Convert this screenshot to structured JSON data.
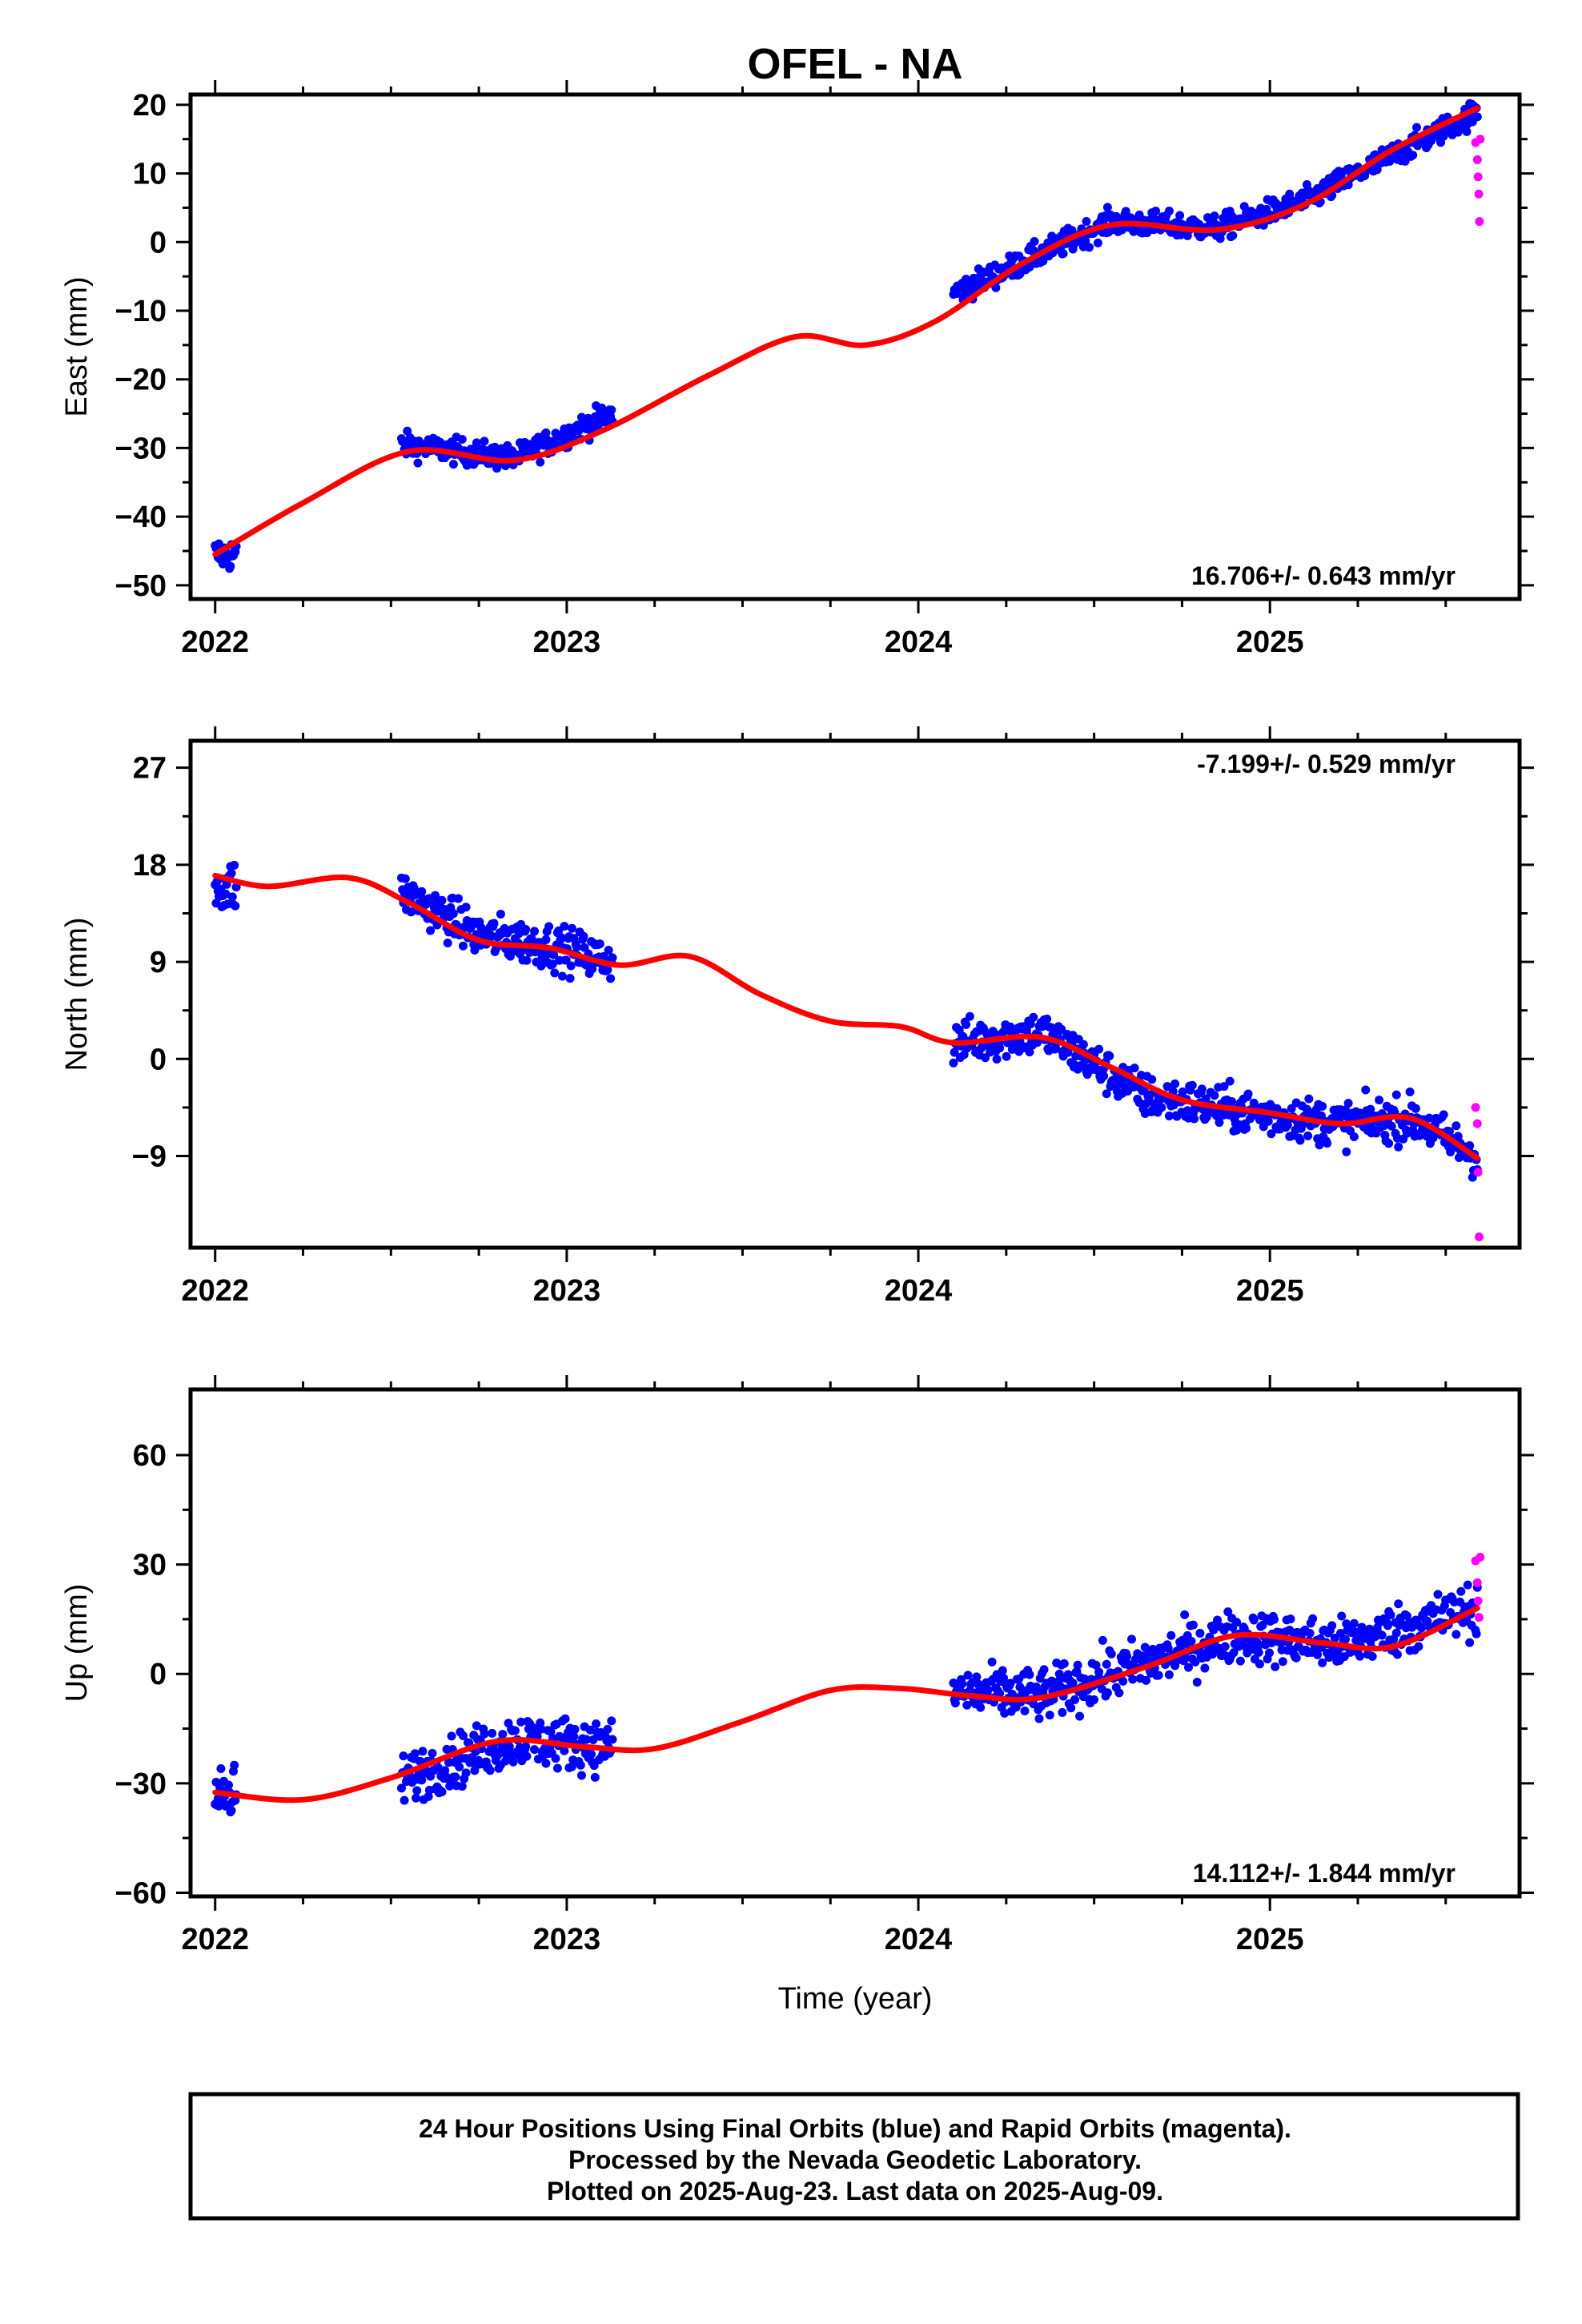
{
  "title": "OFEL - NA",
  "footer": {
    "lines": [
      "24 Hour Positions Using Final Orbits (blue) and Rapid Orbits (magenta).",
      "Processed by the Nevada Geodetic Laboratory.",
      "Plotted on 2025-Aug-23. Last data on 2025-Aug-09."
    ]
  },
  "colors": {
    "final": "#0000ff",
    "rapid": "#ff00ff",
    "model": "#ff0000"
  },
  "chart_data": [
    {
      "type": "scatter",
      "ylabel": "East (mm)",
      "xlabel": "",
      "xlim": [
        2021.93,
        2025.71
      ],
      "ylim": [
        -52,
        21.5
      ],
      "xticks": [
        "2022",
        "2023",
        "2024",
        "2025"
      ],
      "yticks": [
        -50,
        -40,
        -30,
        -20,
        -10,
        0,
        10,
        20
      ],
      "rate": "16.706+/- 0.643 mm/yr",
      "rate_position": "bottom-right",
      "series": [
        {
          "kind": "final",
          "clusters": [
            {
              "x": [
                2022.0,
                2022.06
              ],
              "center": [
                2022.0,
                -45.5
              ],
              "spread": 2.5
            },
            {
              "x": [
                2022.53,
                2023.13
              ],
              "trend": [
                [
                  2022.53,
                  -29.5
                ],
                [
                  2022.85,
                  -31.5
                ],
                [
                  2023.13,
                  -25.0
                ]
              ],
              "spread": 1.8
            },
            {
              "x": [
                2024.1,
                2025.59
              ],
              "trend": [
                [
                  2024.1,
                  -7.5
                ],
                [
                  2024.55,
                  3.0
                ],
                [
                  2024.85,
                  2.0
                ],
                [
                  2025.1,
                  6.0
                ],
                [
                  2025.59,
                  19.0
                ]
              ],
              "spread": 1.8
            }
          ]
        },
        {
          "kind": "rapid",
          "points": [
            [
              2025.585,
              14.5
            ],
            [
              2025.59,
              12.0
            ],
            [
              2025.592,
              9.5
            ],
            [
              2025.594,
              7.0
            ],
            [
              2025.596,
              3.0
            ],
            [
              2025.598,
              15.0
            ]
          ]
        },
        {
          "kind": "model",
          "points": [
            [
              2022.0,
              -45.5
            ],
            [
              2022.25,
              -38
            ],
            [
              2022.55,
              -30.5
            ],
            [
              2022.85,
              -31.8
            ],
            [
              2023.1,
              -27.5
            ],
            [
              2023.4,
              -19.5
            ],
            [
              2023.65,
              -13.8
            ],
            [
              2023.85,
              -15.0
            ],
            [
              2024.05,
              -11.5
            ],
            [
              2024.3,
              -3.0
            ],
            [
              2024.55,
              2.5
            ],
            [
              2024.85,
              1.8
            ],
            [
              2025.1,
              5.5
            ],
            [
              2025.35,
              13.5
            ],
            [
              2025.59,
              19.5
            ]
          ]
        }
      ]
    },
    {
      "type": "scatter",
      "ylabel": "North (mm)",
      "xlabel": "",
      "xlim": [
        2021.93,
        2025.71
      ],
      "ylim": [
        -17.5,
        29.5
      ],
      "xticks": [
        "2022",
        "2023",
        "2024",
        "2025"
      ],
      "yticks": [
        -9,
        0,
        9,
        18,
        27
      ],
      "rate": "-7.199+/- 0.529 mm/yr",
      "rate_position": "top-right",
      "series": [
        {
          "kind": "final",
          "clusters": [
            {
              "x": [
                2022.0,
                2022.06
              ],
              "center": [
                2022.0,
                16.0
              ],
              "spread": 2.5
            },
            {
              "x": [
                2022.53,
                2023.13
              ],
              "trend": [
                [
                  2022.53,
                  15.5
                ],
                [
                  2022.75,
                  11.5
                ],
                [
                  2022.95,
                  10.5
                ],
                [
                  2023.13,
                  9.0
                ]
              ],
              "spread": 2.0
            },
            {
              "x": [
                2024.1,
                2025.59
              ],
              "trend": [
                [
                  2024.1,
                  1.5
                ],
                [
                  2024.35,
                  2.5
                ],
                [
                  2024.65,
                  -3.5
                ],
                [
                  2024.95,
                  -5.0
                ],
                [
                  2025.2,
                  -6.0
                ],
                [
                  2025.4,
                  -5.5
                ],
                [
                  2025.59,
                  -9.0
                ]
              ],
              "spread": 2.0
            }
          ]
        },
        {
          "kind": "rapid",
          "points": [
            [
              2025.585,
              -4.5
            ],
            [
              2025.59,
              -6.0
            ],
            [
              2025.592,
              -10.5
            ],
            [
              2025.595,
              -16.5
            ]
          ]
        },
        {
          "kind": "model",
          "points": [
            [
              2022.0,
              17.0
            ],
            [
              2022.15,
              16.0
            ],
            [
              2022.38,
              16.8
            ],
            [
              2022.55,
              14.5
            ],
            [
              2022.75,
              11.0
            ],
            [
              2022.95,
              10.3
            ],
            [
              2023.15,
              8.7
            ],
            [
              2023.35,
              9.5
            ],
            [
              2023.55,
              6.0
            ],
            [
              2023.75,
              3.5
            ],
            [
              2023.95,
              3.0
            ],
            [
              2024.1,
              1.5
            ],
            [
              2024.35,
              2.0
            ],
            [
              2024.55,
              -0.8
            ],
            [
              2024.75,
              -3.8
            ],
            [
              2025.0,
              -5.0
            ],
            [
              2025.2,
              -6.0
            ],
            [
              2025.4,
              -5.5
            ],
            [
              2025.59,
              -9.2
            ]
          ]
        }
      ]
    },
    {
      "type": "scatter",
      "ylabel": "Up (mm)",
      "xlabel": "Time (year)",
      "xlim": [
        2021.93,
        2025.71
      ],
      "ylim": [
        -61,
        78
      ],
      "xticks": [
        "2022",
        "2023",
        "2024",
        "2025"
      ],
      "yticks": [
        -60,
        -30,
        0,
        30,
        60
      ],
      "rate": "14.112+/- 1.844 mm/yr",
      "rate_position": "bottom-right",
      "series": [
        {
          "kind": "final",
          "clusters": [
            {
              "x": [
                2022.0,
                2022.06
              ],
              "center": [
                2022.0,
                -34.0
              ],
              "spread": 9.0
            },
            {
              "x": [
                2022.53,
                2023.13
              ],
              "trend": [
                [
                  2022.53,
                  -29.0
                ],
                [
                  2022.85,
                  -18.0
                ],
                [
                  2023.13,
                  -20.0
                ]
              ],
              "spread": 7.0
            },
            {
              "x": [
                2024.1,
                2025.59
              ],
              "trend": [
                [
                  2024.1,
                  -5.0
                ],
                [
                  2024.35,
                  -6.0
                ],
                [
                  2024.65,
                  3.0
                ],
                [
                  2024.9,
                  10.5
                ],
                [
                  2025.2,
                  8.0
                ],
                [
                  2025.59,
                  18.0
                ]
              ],
              "spread": 7.0
            }
          ]
        },
        {
          "kind": "rapid",
          "points": [
            [
              2025.585,
              31.0
            ],
            [
              2025.59,
              25.0
            ],
            [
              2025.592,
              20.0
            ],
            [
              2025.595,
              15.5
            ],
            [
              2025.598,
              32.0
            ]
          ]
        },
        {
          "kind": "model",
          "points": [
            [
              2022.0,
              -32.5
            ],
            [
              2022.25,
              -34.5
            ],
            [
              2022.5,
              -28.5
            ],
            [
              2022.8,
              -18.5
            ],
            [
              2023.05,
              -20.0
            ],
            [
              2023.25,
              -20.5
            ],
            [
              2023.5,
              -13.0
            ],
            [
              2023.75,
              -4.5
            ],
            [
              2023.95,
              -4.0
            ],
            [
              2024.15,
              -6.0
            ],
            [
              2024.35,
              -6.5
            ],
            [
              2024.65,
              2.0
            ],
            [
              2024.9,
              10.5
            ],
            [
              2025.15,
              8.5
            ],
            [
              2025.35,
              7.5
            ],
            [
              2025.59,
              18.0
            ]
          ]
        }
      ]
    }
  ]
}
